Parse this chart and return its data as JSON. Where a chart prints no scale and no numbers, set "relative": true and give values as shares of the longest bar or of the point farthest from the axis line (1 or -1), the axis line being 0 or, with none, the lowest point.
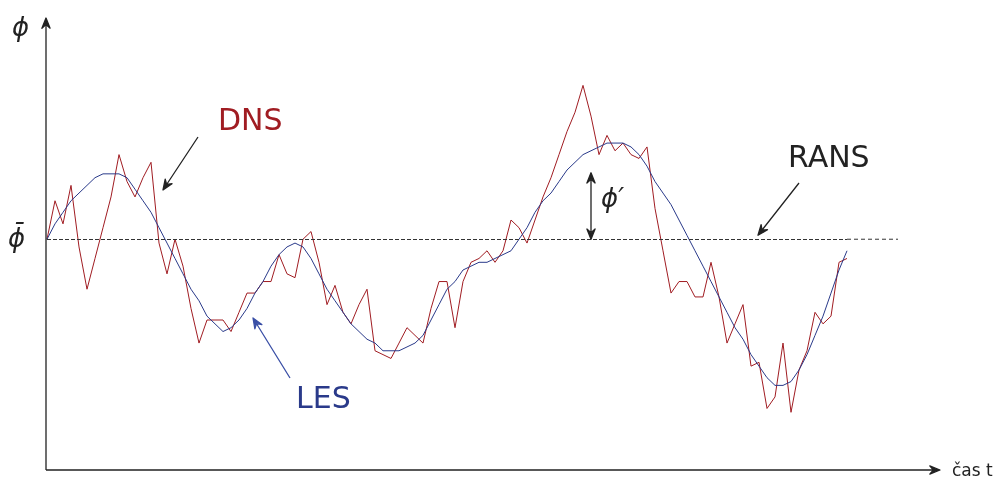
{
  "chart_data": {
    "type": "line",
    "relative": true,
    "ylabel": "ϕ",
    "grid": false,
    "legend": false,
    "marker": "none",
    "categories": [
      null,
      null,
      null,
      null,
      null,
      null,
      null,
      null,
      null,
      null,
      null,
      null,
      null,
      null,
      null,
      null,
      null,
      null,
      null,
      null,
      null,
      null,
      null,
      null,
      null,
      null,
      null,
      null,
      null,
      null,
      null,
      null,
      null,
      null,
      null,
      null,
      null,
      null,
      null,
      null,
      null,
      null,
      null,
      null,
      null,
      null,
      null,
      null,
      null,
      null,
      null,
      null,
      null,
      null,
      null,
      null,
      null,
      null,
      null,
      null,
      null,
      null,
      null,
      null,
      null,
      null,
      null,
      null,
      null,
      null,
      null,
      null,
      null,
      null,
      null,
      null,
      null,
      null,
      null,
      null,
      null,
      null,
      null,
      null,
      null,
      null,
      null,
      null,
      null,
      null,
      null,
      null,
      null,
      null,
      null,
      null,
      null,
      null,
      null,
      null,
      null
    ],
    "series": [
      {
        "name": "DNS",
        "color": "#a01c22",
        "values": [
          0.6,
          0.7,
          0.64,
          0.74,
          0.58,
          0.47,
          0.55,
          0.63,
          0.71,
          0.82,
          0.75,
          0.71,
          0.76,
          0.8,
          0.59,
          0.51,
          0.6,
          0.53,
          0.42,
          0.33,
          0.39,
          0.39,
          0.39,
          0.36,
          0.41,
          0.46,
          0.46,
          0.49,
          0.49,
          0.56,
          0.51,
          0.5,
          0.6,
          0.62,
          0.54,
          0.43,
          0.48,
          0.41,
          0.38,
          0.43,
          0.47,
          0.31,
          0.3,
          0.29,
          0.33,
          0.37,
          0.35,
          0.33,
          0.42,
          0.49,
          0.49,
          0.37,
          0.49,
          0.54,
          0.55,
          0.57,
          0.54,
          0.57,
          0.65,
          0.63,
          0.59,
          0.65,
          0.71,
          0.76,
          0.82,
          0.88,
          0.93,
          1.0,
          0.92,
          0.82,
          0.87,
          0.83,
          0.85,
          0.82,
          0.81,
          0.84,
          0.68,
          0.57,
          0.46,
          0.49,
          0.49,
          0.45,
          0.45,
          0.54,
          0.45,
          0.33,
          0.38,
          0.43,
          0.27,
          0.28,
          0.16,
          0.19,
          0.33,
          0.15,
          0.26,
          0.31,
          0.41,
          0.38,
          0.4,
          0.54,
          0.55
        ]
      },
      {
        "name": "LES",
        "color": "#2a3a8a",
        "values": [
          0.6,
          0.64,
          0.67,
          0.7,
          0.72,
          0.74,
          0.76,
          0.77,
          0.77,
          0.77,
          0.76,
          0.73,
          0.7,
          0.67,
          0.63,
          0.59,
          0.55,
          0.51,
          0.47,
          0.44,
          0.4,
          0.38,
          0.36,
          0.37,
          0.39,
          0.42,
          0.46,
          0.49,
          0.53,
          0.56,
          0.58,
          0.59,
          0.58,
          0.55,
          0.51,
          0.47,
          0.44,
          0.41,
          0.38,
          0.36,
          0.34,
          0.33,
          0.31,
          0.31,
          0.31,
          0.32,
          0.33,
          0.35,
          0.39,
          0.43,
          0.47,
          0.49,
          0.52,
          0.53,
          0.54,
          0.54,
          0.55,
          0.56,
          0.57,
          0.6,
          0.63,
          0.67,
          0.7,
          0.72,
          0.75,
          0.78,
          0.8,
          0.82,
          0.83,
          0.84,
          0.85,
          0.85,
          0.85,
          0.84,
          0.82,
          0.79,
          0.75,
          0.72,
          0.69,
          0.65,
          0.61,
          0.57,
          0.53,
          0.49,
          0.45,
          0.41,
          0.37,
          0.34,
          0.3,
          0.27,
          0.24,
          0.22,
          0.22,
          0.23,
          0.26,
          0.3,
          0.35,
          0.4,
          0.46,
          0.52,
          0.57
        ]
      }
    ],
    "ref_lines": [
      {
        "axis": "y",
        "value": 0.6,
        "label": "RANS",
        "color": "#333333",
        "line_style": "dashed"
      }
    ],
    "annotations": [
      "ϕ̄",
      "ϕ′",
      "čas t"
    ]
  }
}
